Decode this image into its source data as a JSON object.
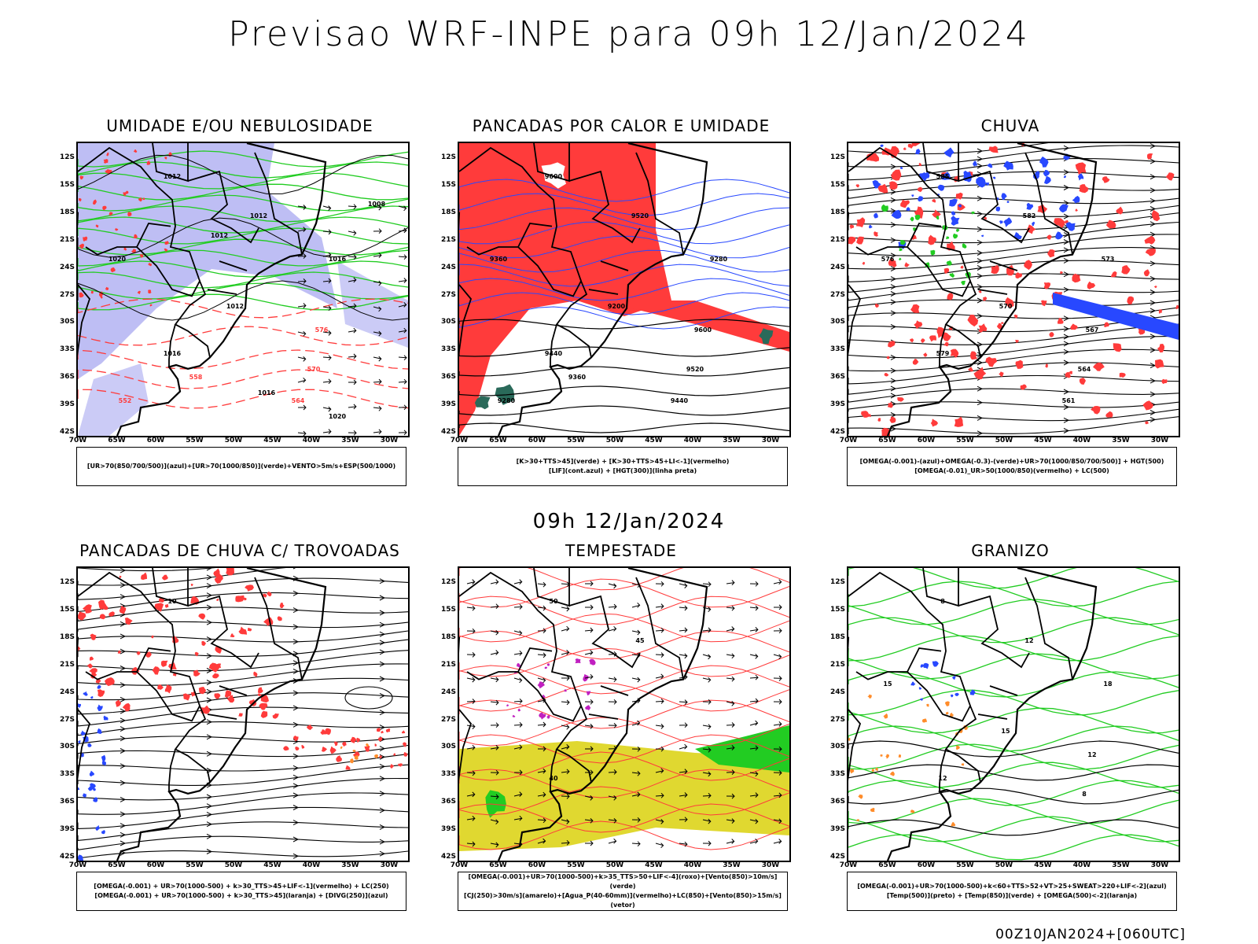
{
  "title": "Previsao WRF-INPE  para 09h 12/Jan/2024",
  "subtitle": "09h 12/Jan/2024",
  "footer": "00Z10JAN2024+[060UTC]",
  "axes": {
    "lat_labels": [
      "12S",
      "15S",
      "18S",
      "21S",
      "24S",
      "27S",
      "30S",
      "33S",
      "36S",
      "39S",
      "42S"
    ],
    "lon_labels": [
      "70W",
      "65W",
      "60W",
      "55W",
      "50W",
      "45W",
      "40W",
      "35W",
      "30W"
    ]
  },
  "colors": {
    "coast": "#000000",
    "red": "#ff3b3b",
    "blue": "#2848ff",
    "green": "#22cc22",
    "lavender": "#a8a8f0",
    "yellow": "#e0d830",
    "orange": "#ff8c2a",
    "purple": "#c020c0",
    "darkgreen": "#2a6a5a"
  },
  "panels": [
    {
      "title": "UMIDADE E/OU NEBULOSIDADE",
      "legend": [
        "[UR>70(850/700/500)](azul)+[UR>70(1000/850)](verde)+VENTO>5m/s+ESP(500/1000)"
      ],
      "contour_labels": [
        "1012",
        "1012",
        "1016",
        "1020",
        "1016",
        "1012",
        "576",
        "570",
        "564",
        "558",
        "552",
        "1016",
        "1020",
        "1012",
        "1008"
      ]
    },
    {
      "title": "PANCADAS POR CALOR E UMIDADE",
      "legend": [
        "[K>30+TTS>45](verde) + [K>30+TTS>45+LI<-1](vermelho)",
        "[LIF](cont.azul) + [HGT(300)](linha preta)"
      ],
      "contour_labels": [
        "9600",
        "9520",
        "9440",
        "9360",
        "9280",
        "9200",
        "9600",
        "9520",
        "9440",
        "9360",
        "9280"
      ]
    },
    {
      "title": "CHUVA",
      "legend": [
        "[OMEGA(-0.001)-(azul)+OMEGA(-0.3)-(verde)+UR>70(1000/850/700/500)] + HGT(500)",
        "[OMEGA(-0.01)_UR>50(1000/850)(vermelho) + LC(500)"
      ],
      "contour_labels": [
        "585",
        "582",
        "579",
        "576",
        "573",
        "570",
        "567",
        "564",
        "561"
      ]
    },
    {
      "title": "PANCADAS DE CHUVA C/ TROVOADAS",
      "legend": [
        "[OMEGA(-0.001) + UR>70(1000-500) + k>30_TTS>45+LIF<-1](vermelho) + LC(250)",
        "[OMEGA(-0.001) + UR>70(1000-500) + k>30_TTS>45](laranja) + [DIVG(250)](azul)"
      ],
      "contour_labels": [
        "10"
      ]
    },
    {
      "title": "TEMPESTADE",
      "legend": [
        "[OMEGA(-0.001)+UR>70(1000-500)+k>35_TTS>50+LIF<-4](roxo)+[Vento(850)>10m/s](verde)",
        "[CJ(250)>30m/s](amarelo)+[Agua_P(40-60mm)](vermelho)+LC(850)+[Vento(850)>15m/s](vetor)"
      ],
      "contour_labels": [
        "50",
        "45",
        "40"
      ]
    },
    {
      "title": "GRANIZO",
      "legend": [
        "[OMEGA(-0.001)+UR>70(1000-500)+k<60+TTS>52+VT>25+SWEAT>220+LIF<-2](azul)",
        "[Temp(500)](preto) + [Temp(850)](verde) + [OMEGA(500)<-2](laranja)"
      ],
      "contour_labels": [
        "8",
        "12",
        "12",
        "15",
        "18",
        "15",
        "12",
        "8"
      ]
    }
  ]
}
